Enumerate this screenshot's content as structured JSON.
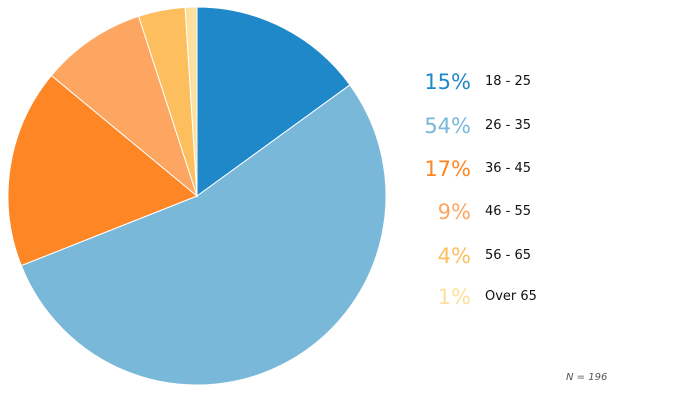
{
  "chart_data": {
    "type": "pie",
    "title": "",
    "categories": [
      "18 - 25",
      "26 - 35",
      "36 - 45",
      "46 - 55",
      "56 - 65",
      "Over 65"
    ],
    "values": [
      15,
      54,
      17,
      9,
      4,
      1
    ],
    "value_labels": [
      "15%",
      "54%",
      "17%",
      "9%",
      "4%",
      "1%"
    ],
    "colors": [
      "#1f88c9",
      "#7ab8d9",
      "#fe8625",
      "#fca661",
      "#fdbe5e",
      "#fde09c"
    ],
    "start_angle": "12 o'clock",
    "direction": "clockwise",
    "legend_position": "right",
    "note": "N = 196"
  }
}
